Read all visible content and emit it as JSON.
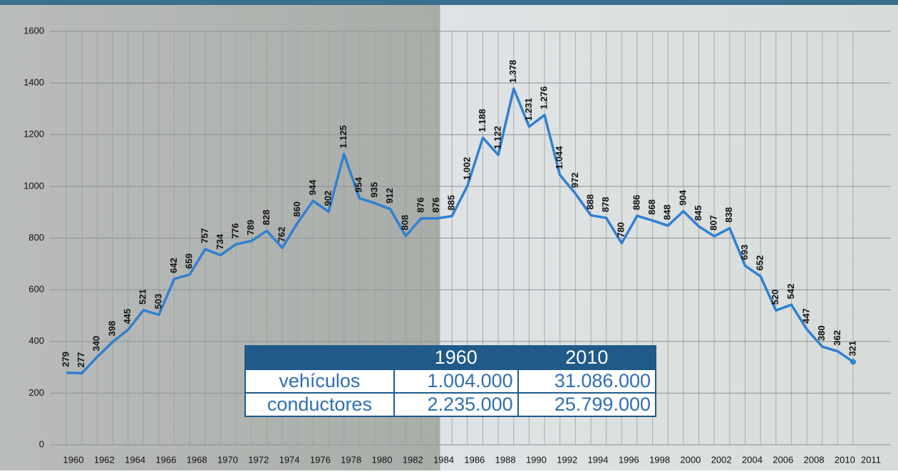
{
  "chart_data": {
    "type": "line",
    "categories": [
      "1960",
      null,
      "1962",
      null,
      "1964",
      null,
      "1966",
      null,
      "1968",
      null,
      "1970",
      null,
      "1972",
      null,
      "1974",
      null,
      "1976",
      null,
      "1978",
      null,
      "1980",
      null,
      "1982",
      null,
      "1984",
      null,
      "1986",
      null,
      "1988",
      null,
      "1990",
      null,
      "1992",
      null,
      "1994",
      null,
      "1996",
      null,
      "1998",
      null,
      "2000",
      null,
      "2002",
      null,
      "2004",
      null,
      "2006",
      null,
      "2008",
      null,
      "2010",
      "2011"
    ],
    "values": [
      279,
      277,
      340,
      398,
      445,
      521,
      503,
      642,
      659,
      757,
      734,
      776,
      789,
      828,
      762,
      860,
      944,
      902,
      1125,
      954,
      935,
      912,
      808,
      876,
      876,
      885,
      1002,
      1188,
      1122,
      1378,
      1231,
      1276,
      1044,
      972,
      888,
      878,
      780,
      886,
      868,
      848,
      904,
      845,
      807,
      838,
      693,
      652,
      520,
      542,
      447,
      380,
      362,
      321
    ],
    "value_labels": [
      "279",
      "277",
      "340",
      "398",
      "445",
      "521",
      "503",
      "642",
      "659",
      "757",
      "734",
      "776",
      "789",
      "828",
      "762",
      "860",
      "944",
      "902",
      "1.125",
      "954",
      "935",
      "912",
      "808",
      "876",
      "876",
      "885",
      "1.002",
      "1.188",
      "1.122",
      "1.378",
      "1.231",
      "1.276",
      "1.044",
      "972",
      "888",
      "878",
      "780",
      "886",
      "868",
      "848",
      "904",
      "845",
      "807",
      "838",
      "693",
      "652",
      "520",
      "542",
      "447",
      "380",
      "362",
      "321"
    ],
    "color": "#2f80d2",
    "ylim": [
      0,
      1600
    ],
    "yticks": [
      0,
      200,
      400,
      600,
      800,
      1000,
      1200,
      1400,
      1600
    ],
    "grid": true
  },
  "table": {
    "header": [
      "1960",
      "2010"
    ],
    "rows": [
      [
        "vehículos",
        "1.004.000",
        "31.086.000"
      ],
      [
        "conductores",
        "2.235.000",
        "25.799.000"
      ]
    ]
  }
}
